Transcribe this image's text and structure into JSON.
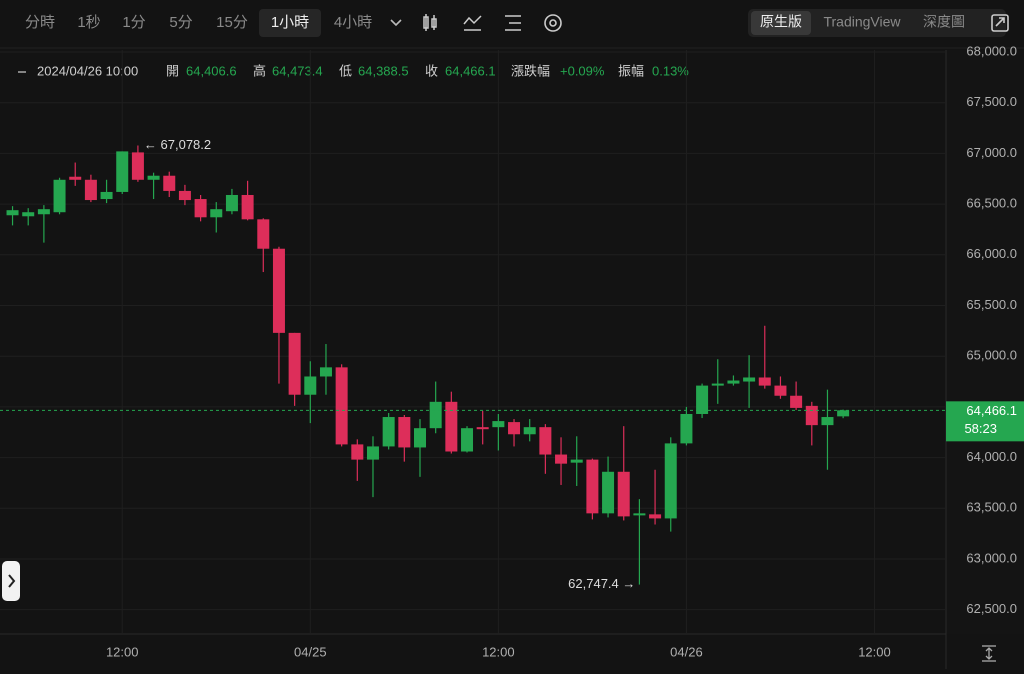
{
  "toolbar": {
    "intervals": [
      "分時",
      "1秒",
      "1分",
      "5分",
      "15分",
      "1小時",
      "4小時"
    ],
    "active_interval": 5,
    "views": [
      "原生版",
      "TradingView",
      "深度圖"
    ],
    "active_view": 0
  },
  "chart_data": {
    "type": "candlestick",
    "info": {
      "datetime": "2024/04/26 10:00",
      "fields": [
        {
          "label": "開",
          "value": "64,406.6"
        },
        {
          "label": "高",
          "value": "64,473.4"
        },
        {
          "label": "低",
          "value": "64,388.5"
        },
        {
          "label": "收",
          "value": "64,466.1"
        },
        {
          "label": "漲跌幅",
          "value": "+0.09%"
        },
        {
          "label": "振幅",
          "value": "0.13%"
        }
      ]
    },
    "open": [
      66390,
      66380,
      66400,
      66420,
      66770,
      66740,
      66550,
      66620,
      67010,
      66740,
      66780,
      66630,
      66550,
      66370,
      66430,
      66590,
      66350,
      66060,
      65230,
      64620,
      64800,
      64890,
      64130,
      63980,
      64110,
      64400,
      64100,
      64290,
      64550,
      64060,
      64300,
      64300,
      64350,
      64230,
      64300,
      64030,
      63950,
      63980,
      63450,
      63860,
      63430,
      63440,
      63400,
      64140,
      64430,
      64710,
      64730,
      64750,
      64790,
      64710,
      64610,
      64510,
      64320,
      64406.6
    ],
    "high": [
      66480,
      66460,
      66490,
      66760,
      66910,
      66790,
      66740,
      67020,
      67078.2,
      66810,
      66820,
      66690,
      66590,
      66520,
      66650,
      66730,
      66360,
      66080,
      65230,
      64950,
      65120,
      64920,
      64180,
      64210,
      64440,
      64420,
      64380,
      64750,
      64650,
      64310,
      64460,
      64430,
      64380,
      64380,
      64330,
      64200,
      64210,
      63990,
      64010,
      64310,
      63590,
      63880,
      64200,
      64500,
      64730,
      64970,
      64810,
      65010,
      65300,
      64800,
      64750,
      64550,
      64670,
      64473.4
    ],
    "low": [
      66290,
      66290,
      66120,
      66400,
      66680,
      66520,
      66510,
      66600,
      66720,
      66550,
      66570,
      66490,
      66330,
      66220,
      66400,
      66340,
      65830,
      64730,
      64510,
      64340,
      64620,
      64110,
      63770,
      63610,
      64080,
      63960,
      63810,
      64240,
      64040,
      64050,
      64130,
      64070,
      64110,
      64160,
      63840,
      63730,
      63720,
      63390,
      63410,
      63380,
      62747.4,
      63340,
      63270,
      64120,
      64390,
      64530,
      64710,
      64490,
      64680,
      64580,
      64470,
      64120,
      63880,
      64388.5
    ],
    "close": [
      66440,
      66420,
      66450,
      66740,
      66740,
      66540,
      66620,
      67020,
      66740,
      66780,
      66630,
      66540,
      66370,
      66450,
      66590,
      66350,
      66060,
      65230,
      64620,
      64800,
      64890,
      64130,
      63980,
      64110,
      64400,
      64100,
      64290,
      64550,
      64060,
      64290,
      64280,
      64360,
      64230,
      64300,
      64030,
      63940,
      63980,
      63450,
      63860,
      63420,
      63450,
      63400,
      64140,
      64430,
      64710,
      64730,
      64760,
      64790,
      64710,
      64610,
      64490,
      64320,
      64400,
      64466.1
    ],
    "up_color": "#25a750",
    "down_color": "#dd2e5a",
    "xlim": [
      -0.8,
      59.5
    ],
    "xticks": [
      {
        "value": 7,
        "label": "12:00"
      },
      {
        "value": 19,
        "label": "04/25"
      },
      {
        "value": 31,
        "label": "12:00"
      },
      {
        "value": 43,
        "label": "04/26"
      },
      {
        "value": 55,
        "label": "12:00"
      }
    ],
    "ylim": [
      62260,
      68020
    ],
    "yticks": [
      {
        "value": 62500,
        "label": "62,500.0"
      },
      {
        "value": 63000,
        "label": "63,000.0"
      },
      {
        "value": 63500,
        "label": "63,500.0"
      },
      {
        "value": 64000,
        "label": "64,000.0"
      },
      {
        "value": 64500,
        "label": "64,500.0"
      },
      {
        "value": 65000,
        "label": "65,000.0"
      },
      {
        "value": 65500,
        "label": "65,500.0"
      },
      {
        "value": 66000,
        "label": "66,000.0"
      },
      {
        "value": 66500,
        "label": "66,500.0"
      },
      {
        "value": 67000,
        "label": "67,000.0"
      },
      {
        "value": 67500,
        "label": "67,500.0"
      },
      {
        "value": 68000,
        "label": "68,000.0"
      }
    ],
    "grid": true,
    "annotations": [
      {
        "text": "← 67,078.2"
      },
      {
        "text": "62,747.4 →"
      }
    ],
    "last_price": {
      "label": "64,466.1",
      "countdown": "58:23"
    }
  }
}
